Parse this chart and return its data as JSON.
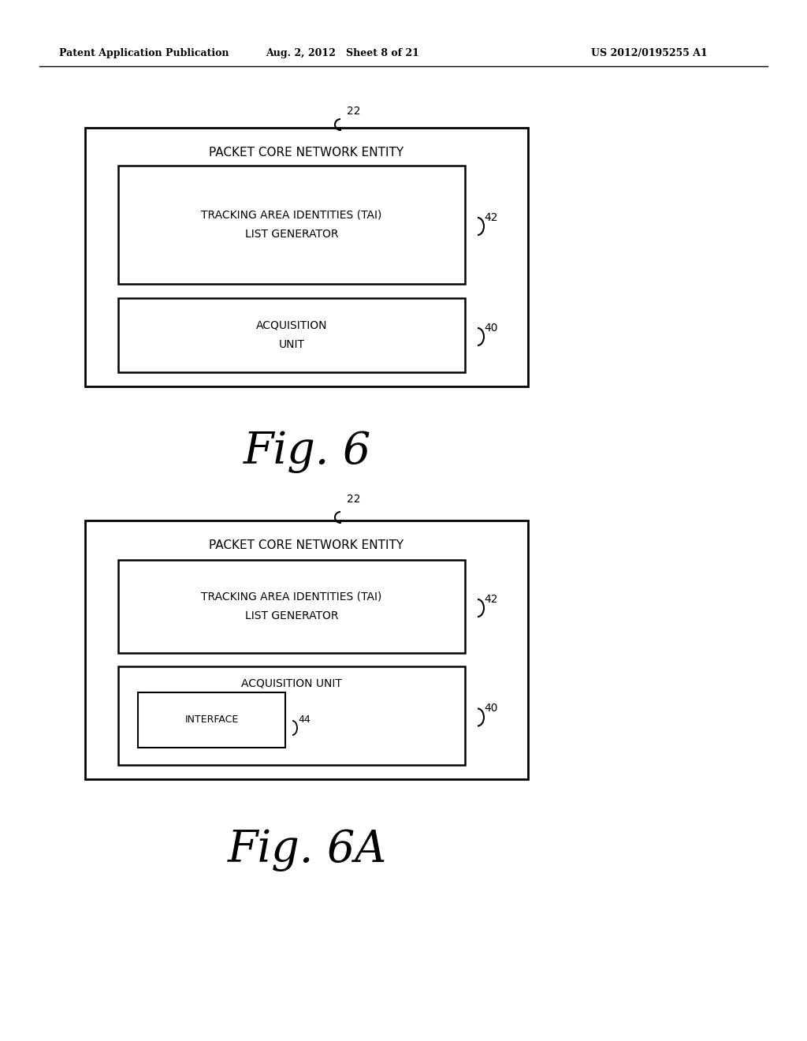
{
  "bg_color": "#ffffff",
  "header_left": "Patent Application Publication",
  "header_mid": "Aug. 2, 2012   Sheet 8 of 21",
  "header_right": "US 2012/0195255 A1",
  "fig6_label": "Fig. 6",
  "fig6a_label": "Fig. 6A",
  "fig6": {
    "label_22": "22",
    "outer_label": "PACKET CORE NETWORK ENTITY",
    "tai_line1": "TRACKING AREA IDENTITIES (TAI)",
    "tai_line2": "LIST GENERATOR",
    "tai_label": "42",
    "acq_text1": "ACQUISITION",
    "acq_text2": "UNIT",
    "acq_label": "40"
  },
  "fig6a": {
    "label_22": "22",
    "outer_label": "PACKET CORE NETWORK ENTITY",
    "tai_line1": "TRACKING AREA IDENTITIES (TAI)",
    "tai_line2": "LIST GENERATOR",
    "tai_label": "42",
    "acq_text": "ACQUISITION UNIT",
    "acq_label": "40",
    "interface_text": "INTERFACE",
    "interface_label": "44"
  }
}
